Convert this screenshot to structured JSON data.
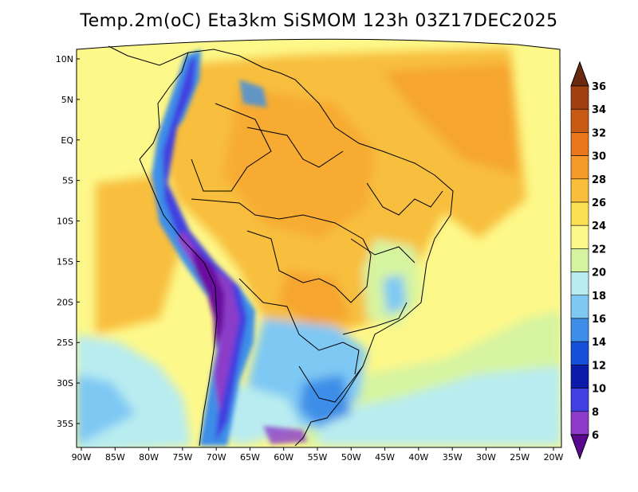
{
  "title": "Temp.2m(oC) Eta3km SiSMOM 123h 03Z17DEC2025",
  "map": {
    "variable": "2 m air temperature",
    "units": "oC",
    "lat_labels": [
      "10N",
      "5N",
      "EQ",
      "5S",
      "10S",
      "15S",
      "20S",
      "25S",
      "30S",
      "35S"
    ],
    "lon_labels": [
      "90W",
      "85W",
      "80W",
      "75W",
      "70W",
      "65W",
      "60W",
      "55W",
      "50W",
      "45W",
      "40W",
      "35W",
      "30W",
      "25W",
      "20W"
    ],
    "lat_values": [
      10,
      5,
      0,
      -5,
      -10,
      -15,
      -20,
      -25,
      -30,
      -35
    ],
    "lon_values": [
      -90,
      -85,
      -80,
      -75,
      -70,
      -65,
      -60,
      -55,
      -50,
      -45,
      -40,
      -35,
      -30,
      -25,
      -20
    ]
  },
  "colorbar": {
    "levels": [
      "36",
      "34",
      "32",
      "30",
      "28",
      "26",
      "24",
      "22",
      "20",
      "18",
      "16",
      "14",
      "12",
      "10",
      "8",
      "6"
    ],
    "colors": [
      "#a04010",
      "#c85a14",
      "#e8761c",
      "#f59a2a",
      "#f8be3c",
      "#fbe052",
      "#fdf88a",
      "#d6f4a0",
      "#b8ecf0",
      "#7ec8f4",
      "#3c8ee8",
      "#1450d8",
      "#0a1ca8",
      "#4040e0",
      "#8c3cc8",
      "#6a10a0"
    ],
    "top_arrow_color": "#6a2a10",
    "bottom_arrow_color": "#5a0890"
  }
}
